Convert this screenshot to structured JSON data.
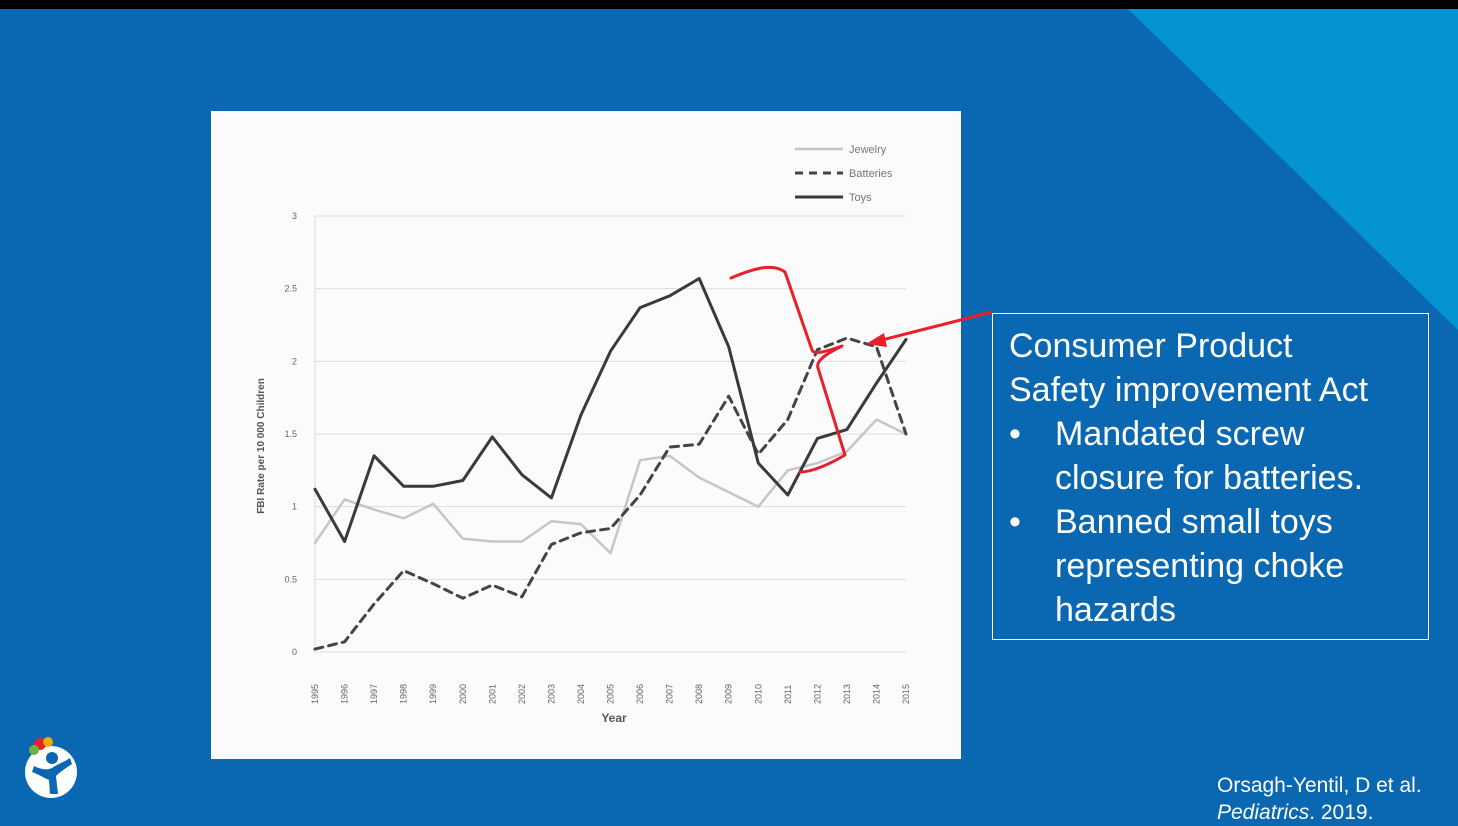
{
  "chart_data": {
    "type": "line",
    "title": "",
    "xlabel": "Year",
    "ylabel": "FBI Rate per 10 000 Children",
    "ylim": [
      0,
      3
    ],
    "yticks": [
      "0",
      "0.5",
      "1",
      "1.5",
      "2",
      "2.5",
      "3"
    ],
    "x": [
      "1995",
      "1996",
      "1997",
      "1998",
      "1999",
      "2000",
      "2001",
      "2002",
      "2003",
      "2004",
      "2005",
      "2006",
      "2007",
      "2008",
      "2009",
      "2010",
      "2011",
      "2012",
      "2013",
      "2014",
      "2015"
    ],
    "legend_position": "top-right",
    "grid": true,
    "series": [
      {
        "name": "Jewelry",
        "style": "solid-light",
        "color": "#c6c6c6",
        "values": [
          0.75,
          1.05,
          0.98,
          0.92,
          1.02,
          0.78,
          0.76,
          0.76,
          0.9,
          0.88,
          0.68,
          1.32,
          1.35,
          1.2,
          1.1,
          1.0,
          1.25,
          1.3,
          1.38,
          1.6,
          1.5
        ]
      },
      {
        "name": "Batteries",
        "style": "dashed",
        "color": "#444444",
        "values": [
          0.02,
          0.07,
          0.33,
          0.56,
          0.47,
          0.37,
          0.46,
          0.38,
          0.74,
          0.82,
          0.85,
          1.08,
          1.41,
          1.43,
          1.76,
          1.36,
          1.6,
          2.08,
          2.16,
          2.1,
          1.5
        ]
      },
      {
        "name": "Toys",
        "style": "solid-dark",
        "color": "#3a3a3a",
        "values": [
          1.12,
          0.76,
          1.35,
          1.14,
          1.14,
          1.18,
          1.48,
          1.22,
          1.06,
          1.63,
          2.07,
          2.37,
          2.45,
          2.57,
          2.1,
          1.3,
          1.08,
          1.47,
          1.53,
          1.85,
          2.15
        ]
      }
    ]
  },
  "callout": {
    "title_line1": "Consumer Product",
    "title_line2": "Safety improvement Act",
    "bullet_char": "•",
    "bullet1_line1": "Mandated screw",
    "bullet1_line2": "closure for batteries.",
    "bullet2_line1": "Banned small toys",
    "bullet2_line2": "representing choke",
    "bullet2_line3": "hazards"
  },
  "citation": {
    "author": "Orsagh-Yentil, D et al.",
    "journal": "Pediatrics",
    "year_suffix": ". 2019."
  },
  "colors": {
    "background": "#0a67b1",
    "corner_triangle": "#0494d3",
    "annotation_red": "#e8202a",
    "white": "#ffffff"
  },
  "logo": {
    "icon": "child-figure-logo-icon"
  }
}
